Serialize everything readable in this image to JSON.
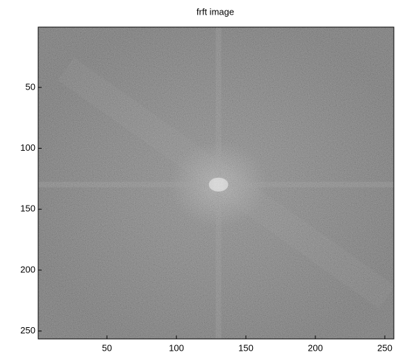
{
  "chart_data": {
    "type": "image",
    "title": "frft image",
    "xlim": [
      0.5,
      256.5
    ],
    "ylim": [
      0.5,
      256.5
    ],
    "ydir": "reverse",
    "xticks": [
      50,
      100,
      150,
      200,
      250
    ],
    "yticks": [
      50,
      100,
      150,
      200,
      250
    ]
  }
}
